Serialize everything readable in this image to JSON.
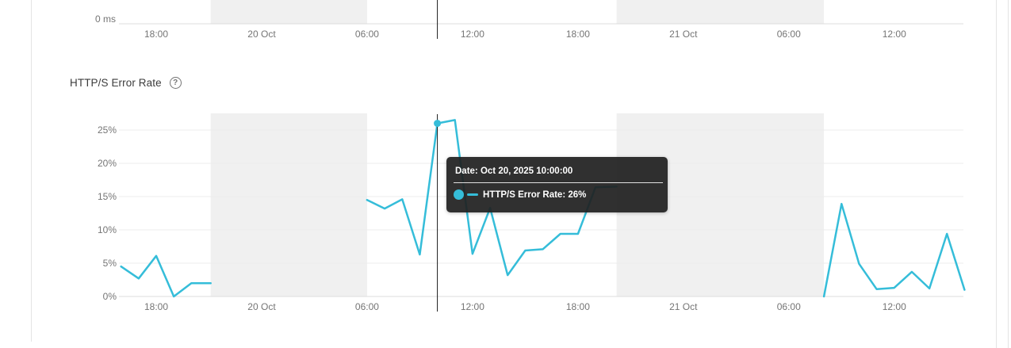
{
  "colors": {
    "line": "#35bdd9",
    "band": "#f0f0f0",
    "grid": "#ececec",
    "axis": "#dcdcdc",
    "tick_text": "#757575",
    "crosshair": "#1c1c1c",
    "tooltip_bg": "rgba(32,32,32,0.93)",
    "card_border": "#e4e4e4"
  },
  "ui": {
    "help_glyph": "?"
  },
  "tooltip": {
    "date_line": "Date: Oct 20, 2025 10:00:00",
    "series_line": "HTTP/S Error Rate: 26%"
  },
  "chart_data": [
    {
      "type": "line",
      "id": "latency-chart-bottom-sliver",
      "title": "",
      "yticks": [
        {
          "label": "0 ms",
          "v": 0
        }
      ],
      "xticks": [
        {
          "t": 2,
          "label": "18:00"
        },
        {
          "t": 8,
          "label": "20 Oct"
        },
        {
          "t": 14,
          "label": "06:00"
        },
        {
          "t": 20,
          "label": "12:00"
        },
        {
          "t": 26,
          "label": "18:00"
        },
        {
          "t": 32,
          "label": "21 Oct"
        },
        {
          "t": 38,
          "label": "06:00"
        },
        {
          "t": 44,
          "label": "12:00"
        }
      ],
      "x_unit": "hours since 2025-10-19 16:00",
      "shaded_periods": [
        {
          "t0": 5.1,
          "t1": 14
        },
        {
          "t0": 28.2,
          "t1": 40
        }
      ],
      "crosshair_t": 18,
      "series": []
    },
    {
      "type": "line",
      "id": "http-error-rate",
      "title": "HTTP/S Error Rate",
      "xlabel": "",
      "ylabel": "",
      "ylim": [
        0,
        27.5
      ],
      "grid": true,
      "legend_position": "none",
      "yticks": [
        {
          "v": 0,
          "label": "0%"
        },
        {
          "v": 5,
          "label": "5%"
        },
        {
          "v": 10,
          "label": "10%"
        },
        {
          "v": 15,
          "label": "15%"
        },
        {
          "v": 20,
          "label": "20%"
        },
        {
          "v": 25,
          "label": "25%"
        }
      ],
      "xticks": [
        {
          "t": 2,
          "label": "18:00"
        },
        {
          "t": 8,
          "label": "20 Oct"
        },
        {
          "t": 14,
          "label": "06:00"
        },
        {
          "t": 20,
          "label": "12:00"
        },
        {
          "t": 26,
          "label": "18:00"
        },
        {
          "t": 32,
          "label": "21 Oct"
        },
        {
          "t": 38,
          "label": "06:00"
        },
        {
          "t": 44,
          "label": "12:00"
        }
      ],
      "x_unit": "hours since 2025-10-19 16:00",
      "shaded_periods": [
        {
          "t0": 5.1,
          "t1": 14
        },
        {
          "t0": 28.2,
          "t1": 40
        }
      ],
      "series_name": "HTTP/S Error Rate",
      "segments": [
        {
          "points": [
            [
              0,
              4.5
            ],
            [
              1,
              2.7
            ],
            [
              2,
              6.1
            ],
            [
              3,
              0
            ],
            [
              4,
              2
            ],
            [
              5.1,
              2
            ]
          ]
        },
        {
          "points": [
            [
              14,
              14.5
            ],
            [
              15,
              13.2
            ],
            [
              16,
              14.6
            ],
            [
              17,
              6.3
            ],
            [
              18,
              26
            ],
            [
              19,
              26.5
            ],
            [
              20,
              6.4
            ],
            [
              21,
              13.3
            ],
            [
              22,
              3.2
            ],
            [
              23,
              6.9
            ],
            [
              24,
              7.1
            ],
            [
              25,
              9.4
            ],
            [
              26,
              9.4
            ],
            [
              27,
              16.4
            ],
            [
              28.2,
              16.5
            ]
          ]
        },
        {
          "points": [
            [
              40,
              0
            ],
            [
              41,
              13.9
            ],
            [
              42,
              4.9
            ],
            [
              43,
              1.1
            ],
            [
              44,
              1.3
            ],
            [
              45,
              3.7
            ],
            [
              46,
              1.2
            ],
            [
              47,
              9.4
            ],
            [
              48,
              1
            ]
          ]
        }
      ],
      "highlight_point": {
        "t": 18,
        "v": 26
      },
      "crosshair_t": 18
    }
  ]
}
